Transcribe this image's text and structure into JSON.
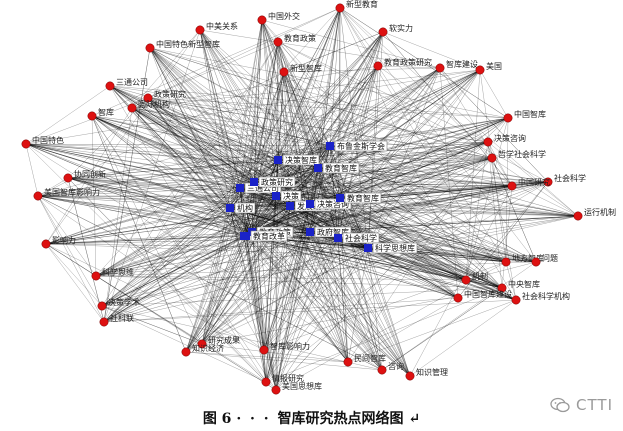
{
  "caption": {
    "fig": "图 6",
    "gap": "· · · ",
    "title": "智库研究热点网络图",
    "mark": "↵"
  },
  "watermark": {
    "text": "CTTI",
    "icon": "wechat-icon"
  },
  "colors": {
    "peripheral": "#dd1111",
    "core": "#1a22c8",
    "edge": "#000000",
    "label_box": "#ffffff"
  },
  "nodes": {
    "peripheral": [
      "新型教育",
      "中国外交",
      "中美关系",
      "软实力",
      "教育政策",
      "中国特色新型智库",
      "教育政策研究",
      "智库建设",
      "美国",
      "新型智库",
      "三通公司",
      "政策研究",
      "中国智库",
      "国际机构",
      "智库",
      "决策咨询",
      "中国特色",
      "哲学社会科学",
      "协同创新",
      "社会科学",
      "中国研究",
      "美国智库影响力",
      "运行机制",
      "影响力",
      "地方智库",
      "科学思维",
      "问题",
      "机制",
      "中央智库",
      "决策学术",
      "中国智库建设",
      "社会科学机构",
      "社科联",
      "研究成果",
      "知识经济",
      "智库影响力",
      "民间智库",
      "咨询",
      "知识管理",
      "情报研究",
      "美国思想库"
    ],
    "core": [
      "布鲁金斯学会",
      "决策智库",
      "教育智库",
      "三通公司",
      "政策研究",
      "机构",
      "决策",
      "发展战略",
      "决策咨询",
      "教育智库",
      "智库",
      "教育政策",
      "政府智库",
      "教育改革",
      "社会科学",
      "科学思想库"
    ]
  }
}
